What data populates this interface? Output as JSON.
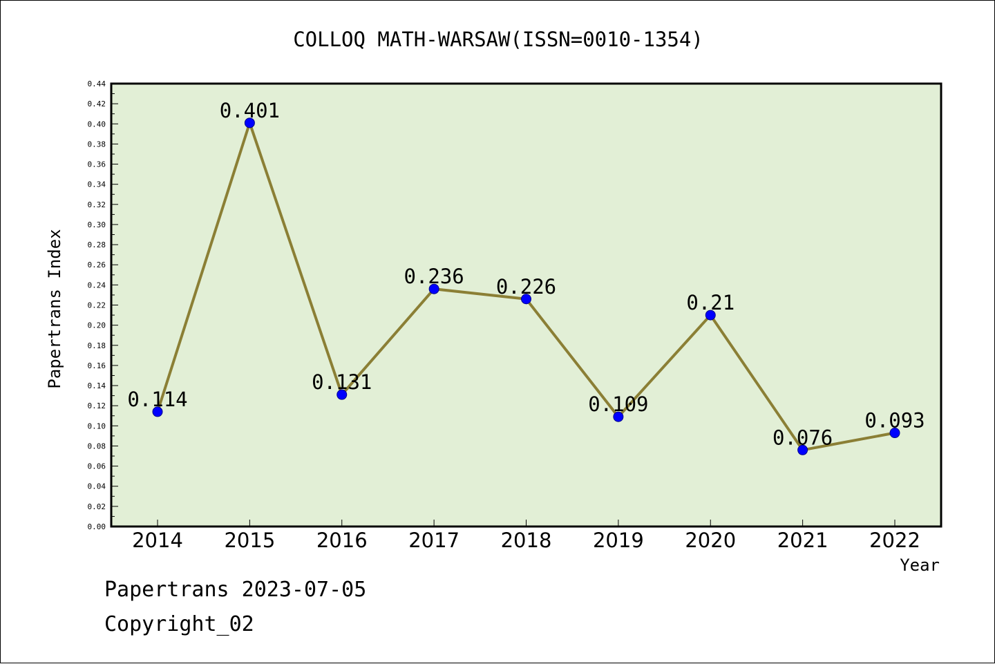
{
  "chart_data": {
    "type": "line",
    "title": "COLLOQ MATH-WARSAW(ISSN=0010-1354)",
    "xlabel": "Year",
    "ylabel": "Papertrans Index",
    "categories": [
      "2014",
      "2015",
      "2016",
      "2017",
      "2018",
      "2019",
      "2020",
      "2021",
      "2022"
    ],
    "series": [
      {
        "values": [
          0.114,
          0.401,
          0.131,
          0.236,
          0.226,
          0.109,
          0.21,
          0.076,
          0.093
        ],
        "data_labels": [
          "0.114",
          "0.401",
          "0.131",
          "0.236",
          "0.226",
          "0.109",
          "0.21",
          "0.076",
          "0.093"
        ]
      }
    ],
    "ylim": [
      0,
      0.44
    ],
    "y_ticks": [
      "0.00",
      "0.02",
      "0.04",
      "0.06",
      "0.08",
      "0.10",
      "0.12",
      "0.14",
      "0.16",
      "0.18",
      "0.20",
      "0.22",
      "0.24",
      "0.26",
      "0.28",
      "0.30",
      "0.32",
      "0.34",
      "0.36",
      "0.38",
      "0.40",
      "0.42",
      "0.44"
    ],
    "grid": false,
    "colors": {
      "plot_bg": "#e2efd6",
      "line": "#8b7f35",
      "marker": "#0000ff"
    }
  },
  "footer": {
    "line1": "Papertrans 2023-07-05",
    "line2": "Copyright_02"
  }
}
